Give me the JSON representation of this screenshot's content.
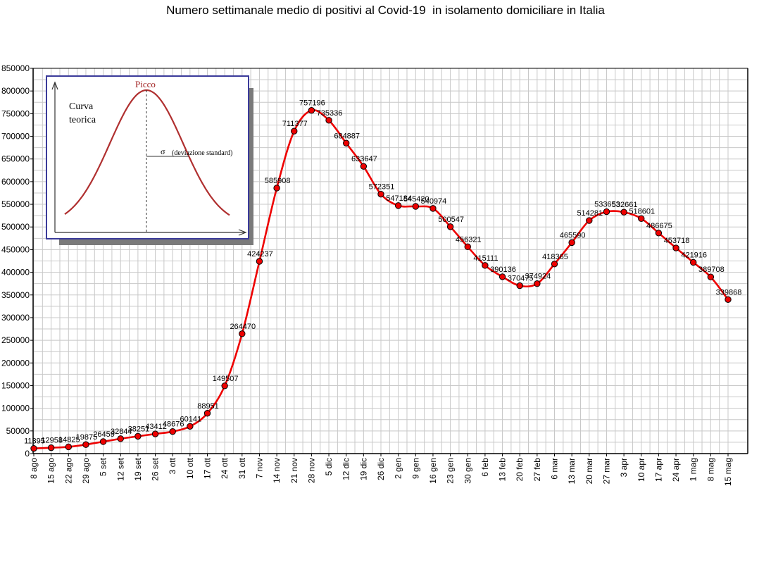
{
  "chart_data": {
    "type": "line",
    "title": "Numero settimanale medio di positivi al Covid-19  in isolamento domiciliare in Italia",
    "xlabel": "",
    "ylabel": "",
    "ylim": [
      0,
      850000
    ],
    "y_ticks": [
      0,
      50000,
      100000,
      150000,
      200000,
      250000,
      300000,
      350000,
      400000,
      450000,
      500000,
      550000,
      600000,
      650000,
      700000,
      750000,
      800000,
      850000
    ],
    "grid": true,
    "legend": "none",
    "line_color": "#ee0000",
    "marker_color": "#ee0000",
    "categories": [
      "8 ago",
      "15 ago",
      "22 ago",
      "29 ago",
      "5 set",
      "12 set",
      "19 set",
      "26 set",
      "3 ott",
      "10 ott",
      "17 ott",
      "24 ott",
      "31 ott",
      "7 nov",
      "14 nov",
      "21 nov",
      "28 nov",
      "5 dic",
      "12 dic",
      "19 dic",
      "26 dic",
      "2 gen",
      "9 gen",
      "16 gen",
      "23 gen",
      "30 gen",
      "6 feb",
      "13 feb",
      "20 feb",
      "27 feb",
      "6 mar",
      "13 mar",
      "20 mar",
      "27 mar",
      "3 apr",
      "10 apr",
      "17 apr",
      "24 apr",
      "1 mag",
      "8 mag",
      "15 mag"
    ],
    "values": [
      11395,
      12958,
      14825,
      19875,
      26459,
      32844,
      38251,
      43412,
      48676,
      60141,
      88951,
      149507,
      264470,
      424237,
      585908,
      711377,
      757196,
      735336,
      684887,
      633647,
      572351,
      547184,
      545420,
      540974,
      500547,
      456321,
      415111,
      390136,
      370475,
      374924,
      418365,
      465590,
      514281,
      533653,
      532661,
      518601,
      486675,
      453718,
      421916,
      389708,
      339868
    ],
    "data_labels": [
      "11395",
      "12958",
      "14825",
      "19875",
      "26459",
      "32844",
      "38251",
      "43412",
      "48676",
      "60141",
      "88951",
      "149507",
      "264470",
      "424237",
      "585908",
      "711377",
      "757196",
      "735336",
      "684887",
      "633647",
      "572351",
      "547184",
      "545420",
      "540974",
      "500547",
      "456321",
      "415111",
      "390136",
      "370475",
      "374924",
      "418365",
      "465590",
      "514281",
      "533653",
      "532661",
      "518601",
      "486675",
      "453718",
      "421916",
      "389708",
      "339868"
    ],
    "inset": {
      "peak_label": "Picco",
      "curve_label_line1": "Curva",
      "curve_label_line2": "teorica",
      "sigma_symbol": "σ",
      "sigma_label": "(deviazione standard)"
    }
  }
}
